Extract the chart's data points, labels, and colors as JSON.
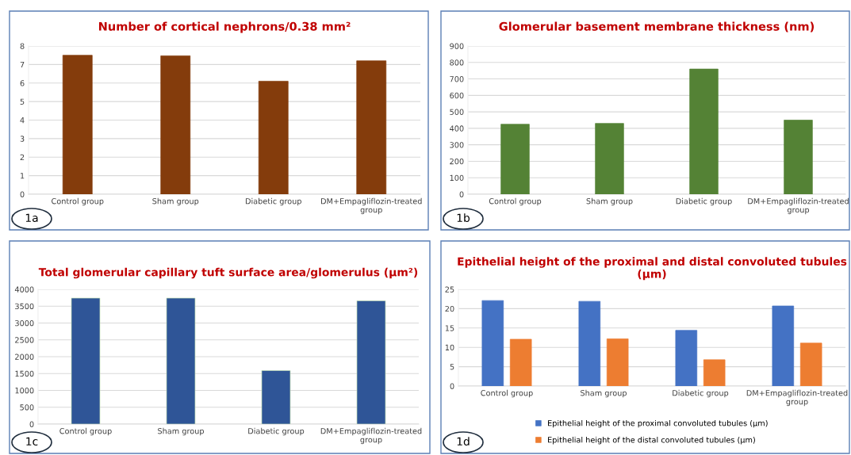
{
  "chart_data": [
    {
      "type": "bar",
      "title": "Number of cortical nephrons/0.38 mm²",
      "categories": [
        "Control group",
        "Sham group",
        "Diabetic group",
        "DM+Empagliflozin-treated group"
      ],
      "values": [
        7.5,
        7.47,
        6.1,
        7.2
      ],
      "color": "#843c0c",
      "ylim": [
        0,
        8
      ],
      "yticks": [
        0,
        1,
        2,
        3,
        4,
        5,
        6,
        7,
        8
      ],
      "grid": "y",
      "annotations": [
        "1a"
      ]
    },
    {
      "type": "bar",
      "title": "Glomerular basement membrane thickness (nm)",
      "categories": [
        "Control group",
        "Sham group",
        "Diabetic group",
        "DM+Empagliflozin-treated group"
      ],
      "values": [
        425,
        430,
        760,
        450
      ],
      "color": "#548235",
      "ylim": [
        0,
        900
      ],
      "yticks": [
        0,
        100,
        200,
        300,
        400,
        500,
        600,
        700,
        800,
        900
      ],
      "grid": "y",
      "annotations": [
        "1b"
      ]
    },
    {
      "type": "bar",
      "title": "Total glomerular capillary tuft surface area/glomerulus (μm²)",
      "categories": [
        "Control group",
        "Sham group",
        "Diabetic group",
        "DM+Empagliflozin-treated group"
      ],
      "values": [
        3740,
        3740,
        1590,
        3660
      ],
      "color": "#2f5597",
      "ylim": [
        0,
        4000
      ],
      "yticks": [
        0,
        500,
        1000,
        1500,
        2000,
        2500,
        3000,
        3500,
        4000
      ],
      "grid": "y",
      "annotations": [
        "1c"
      ]
    },
    {
      "type": "bar",
      "title": "Epithelial height of the proximal and distal convoluted tubules (μm)",
      "categories": [
        "Control group",
        "Sham group",
        "Diabetic group",
        "DM+Empagliflozin-treated group"
      ],
      "series": [
        {
          "name": "Epithelial height of the proximal convoluted tubules (μm)",
          "color": "#4472c4",
          "values": [
            22.1,
            21.9,
            14.4,
            20.7
          ]
        },
        {
          "name": "Epithelial height of the distal convoluted tubules (μm)",
          "color": "#ed7d31",
          "values": [
            12.1,
            12.2,
            6.8,
            11.1
          ]
        }
      ],
      "ylim": [
        0,
        25
      ],
      "yticks": [
        0,
        5,
        10,
        15,
        20,
        25
      ],
      "grid": "y",
      "legend": "bottom",
      "annotations": [
        "1d"
      ]
    }
  ]
}
